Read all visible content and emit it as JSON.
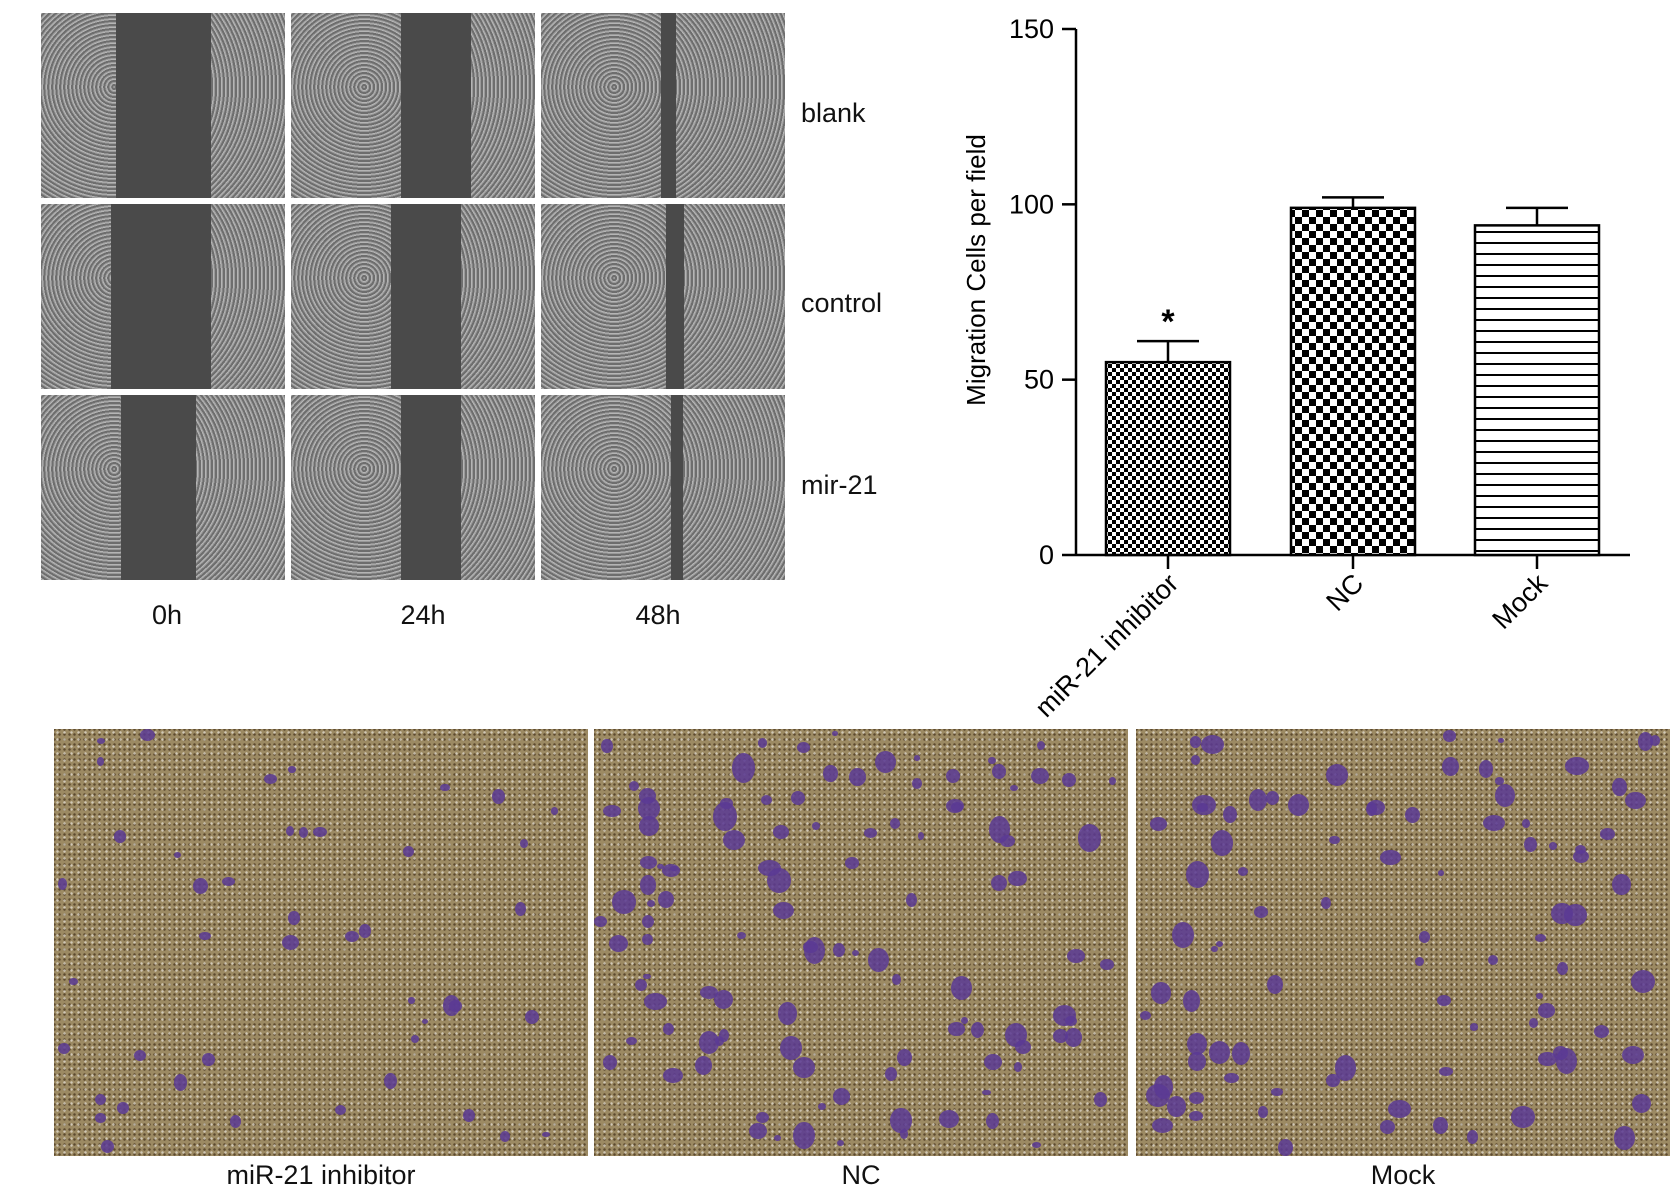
{
  "scratch_panel": {
    "rows": [
      "blank",
      "control",
      "mir-21"
    ],
    "columns": [
      "0h",
      "24h",
      "48h"
    ]
  },
  "transwell_panel": {
    "labels": [
      "miR-21 inhibitor",
      "NC",
      "Mock"
    ],
    "stain_color": "#5a3a94",
    "background_color": "#9c8a63"
  },
  "chart_data": {
    "type": "bar",
    "categories": [
      "miR-21 inhibitor",
      "NC",
      "Mock"
    ],
    "values": [
      55,
      99,
      94
    ],
    "error_upper": [
      61,
      102,
      99
    ],
    "patterns": [
      "fine-checker",
      "coarse-checker",
      "horizontal-lines"
    ],
    "annotations": [
      {
        "category": "miR-21 inhibitor",
        "text": "*"
      }
    ],
    "xlabel": "",
    "ylabel": "Migration Cells per field",
    "ylim": [
      0,
      150
    ],
    "yticks": [
      0,
      50,
      100,
      150
    ],
    "grid": false
  }
}
